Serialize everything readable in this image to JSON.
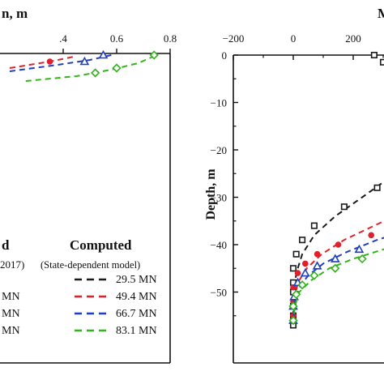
{
  "chart_data": [
    {
      "type": "line",
      "xlabel": "n, m",
      "ylabel": "",
      "xlim": [
        0.2,
        0.8
      ],
      "xticks": [
        0.4,
        0.6,
        0.8
      ],
      "xtick_labels": [
        ".4",
        "0.6",
        "0.8"
      ],
      "series": [
        {
          "name": "49.4 MN",
          "color": "#e0202a",
          "marker": "circle",
          "measured": [
            [
              0.35,
              5
            ]
          ],
          "computed": [
            [
              0.2,
              9
            ],
            [
              0.35,
              5
            ],
            [
              0.44,
              2
            ]
          ]
        },
        {
          "name": "66.7 MN",
          "color": "#1f3fbf",
          "marker": "triangle",
          "measured": [
            [
              0.48,
              5
            ],
            [
              0.55,
              1
            ]
          ],
          "computed": [
            [
              0.2,
              11
            ],
            [
              0.38,
              7
            ],
            [
              0.5,
              4
            ],
            [
              0.58,
              1
            ]
          ]
        },
        {
          "name": "83.1 MN",
          "color": "#33b41c",
          "marker": "diamond",
          "measured": [
            [
              0.52,
              12
            ],
            [
              0.6,
              9
            ],
            [
              0.74,
              1
            ]
          ],
          "computed": [
            [
              0.26,
              17
            ],
            [
              0.45,
              14
            ],
            [
              0.58,
              10
            ],
            [
              0.68,
              6
            ],
            [
              0.75,
              1
            ]
          ]
        }
      ]
    },
    {
      "type": "line",
      "xlabel": "M",
      "ylabel": "Depth, m",
      "xlim": [
        -200,
        500
      ],
      "ylim": [
        -60,
        0
      ],
      "xticks": [
        -200,
        0,
        200,
        400
      ],
      "xtick_labels": [
        "−200",
        "0",
        "200",
        "400"
      ],
      "yticks": [
        0,
        -10,
        -20,
        -30,
        -40,
        -50
      ],
      "ytick_labels": [
        "0",
        "−10",
        "−20",
        "−30",
        "−40",
        "−50"
      ],
      "series": [
        {
          "name": "29.5 MN",
          "color": "#1a1a1a",
          "marker": "square",
          "measured": [
            [
              270,
              0
            ],
            [
              300,
              -1.5
            ],
            [
              330,
              -3
            ],
            [
              350,
              -5
            ],
            [
              370,
              -7.5
            ],
            [
              395,
              -10
            ],
            [
              470,
              -17.5
            ],
            [
              470,
              -19
            ],
            [
              350,
              -24
            ],
            [
              280,
              -28
            ],
            [
              170,
              -32
            ],
            [
              70,
              -36
            ],
            [
              30,
              -39
            ],
            [
              10,
              -42
            ],
            [
              0,
              -45
            ],
            [
              0,
              -48
            ],
            [
              0,
              -50
            ],
            [
              0,
              -53
            ],
            [
              0,
              -55
            ],
            [
              0,
              -57
            ]
          ],
          "computed": [
            [
              470,
              -18
            ],
            [
              420,
              -21
            ],
            [
              340,
              -25
            ],
            [
              230,
              -30
            ],
            [
              140,
              -34
            ],
            [
              70,
              -38
            ],
            [
              30,
              -42
            ],
            [
              10,
              -46
            ],
            [
              3,
              -50
            ],
            [
              0,
              -55
            ],
            [
              0,
              -58
            ]
          ]
        },
        {
          "name": "49.4 MN",
          "color": "#e0202a",
          "marker": "circle",
          "measured": [
            [
              460,
              -30
            ],
            [
              400,
              -35
            ],
            [
              260,
              -38
            ],
            [
              150,
              -40
            ],
            [
              80,
              -42
            ],
            [
              40,
              -44
            ],
            [
              15,
              -46
            ],
            [
              0,
              -49
            ],
            [
              0,
              -52
            ],
            [
              0,
              -55
            ]
          ],
          "computed": [
            [
              470,
              -30
            ],
            [
              370,
              -33
            ],
            [
              270,
              -36
            ],
            [
              170,
              -39
            ],
            [
              95,
              -42
            ],
            [
              45,
              -45
            ],
            [
              15,
              -48
            ],
            [
              3,
              -52
            ],
            [
              0,
              -56
            ]
          ]
        },
        {
          "name": "66.7 MN",
          "color": "#1f3fbf",
          "marker": "triangle",
          "measured": [
            [
              470,
              -35
            ],
            [
              330,
              -39
            ],
            [
              220,
              -41
            ],
            [
              140,
              -43
            ],
            [
              80,
              -44.5
            ],
            [
              40,
              -46
            ],
            [
              15,
              -48
            ],
            [
              3,
              -51
            ],
            [
              0,
              -53
            ],
            [
              0,
              -56
            ]
          ],
          "computed": [
            [
              470,
              -36
            ],
            [
              380,
              -37
            ],
            [
              280,
              -39
            ],
            [
              180,
              -41.5
            ],
            [
              100,
              -44
            ],
            [
              50,
              -46.5
            ],
            [
              20,
              -49
            ],
            [
              5,
              -52
            ],
            [
              0,
              -56
            ]
          ]
        },
        {
          "name": "83.1 MN",
          "color": "#33b41c",
          "marker": "diamond",
          "measured": [
            [
              470,
              -38
            ],
            [
              320,
              -41
            ],
            [
              230,
              -43
            ],
            [
              140,
              -45
            ],
            [
              70,
              -46.5
            ],
            [
              30,
              -48.5
            ],
            [
              10,
              -50.5
            ],
            [
              0,
              -53
            ],
            [
              0,
              -56
            ]
          ],
          "computed": [
            [
              470,
              -38
            ],
            [
              390,
              -39.5
            ],
            [
              300,
              -41
            ],
            [
              200,
              -43
            ],
            [
              120,
              -45
            ],
            [
              60,
              -47.5
            ],
            [
              20,
              -50
            ],
            [
              5,
              -53
            ],
            [
              0,
              -57
            ]
          ]
        }
      ]
    }
  ],
  "legend": {
    "measured_header": "d",
    "measured_note": "2017)",
    "computed_header": "Computed",
    "computed_note": "(State-dependent model)",
    "entries": [
      {
        "measured_label": "",
        "computed_label": "29.5 MN",
        "color": "#1a1a1a",
        "marker": "square"
      },
      {
        "measured_label": "MN",
        "computed_label": "49.4 MN",
        "color": "#e0202a",
        "marker": "circle"
      },
      {
        "measured_label": "MN",
        "computed_label": "66.7 MN",
        "color": "#1f3fbf",
        "marker": "triangle"
      },
      {
        "measured_label": "MN",
        "computed_label": "83.1 MN",
        "color": "#33b41c",
        "marker": "diamond"
      }
    ]
  }
}
